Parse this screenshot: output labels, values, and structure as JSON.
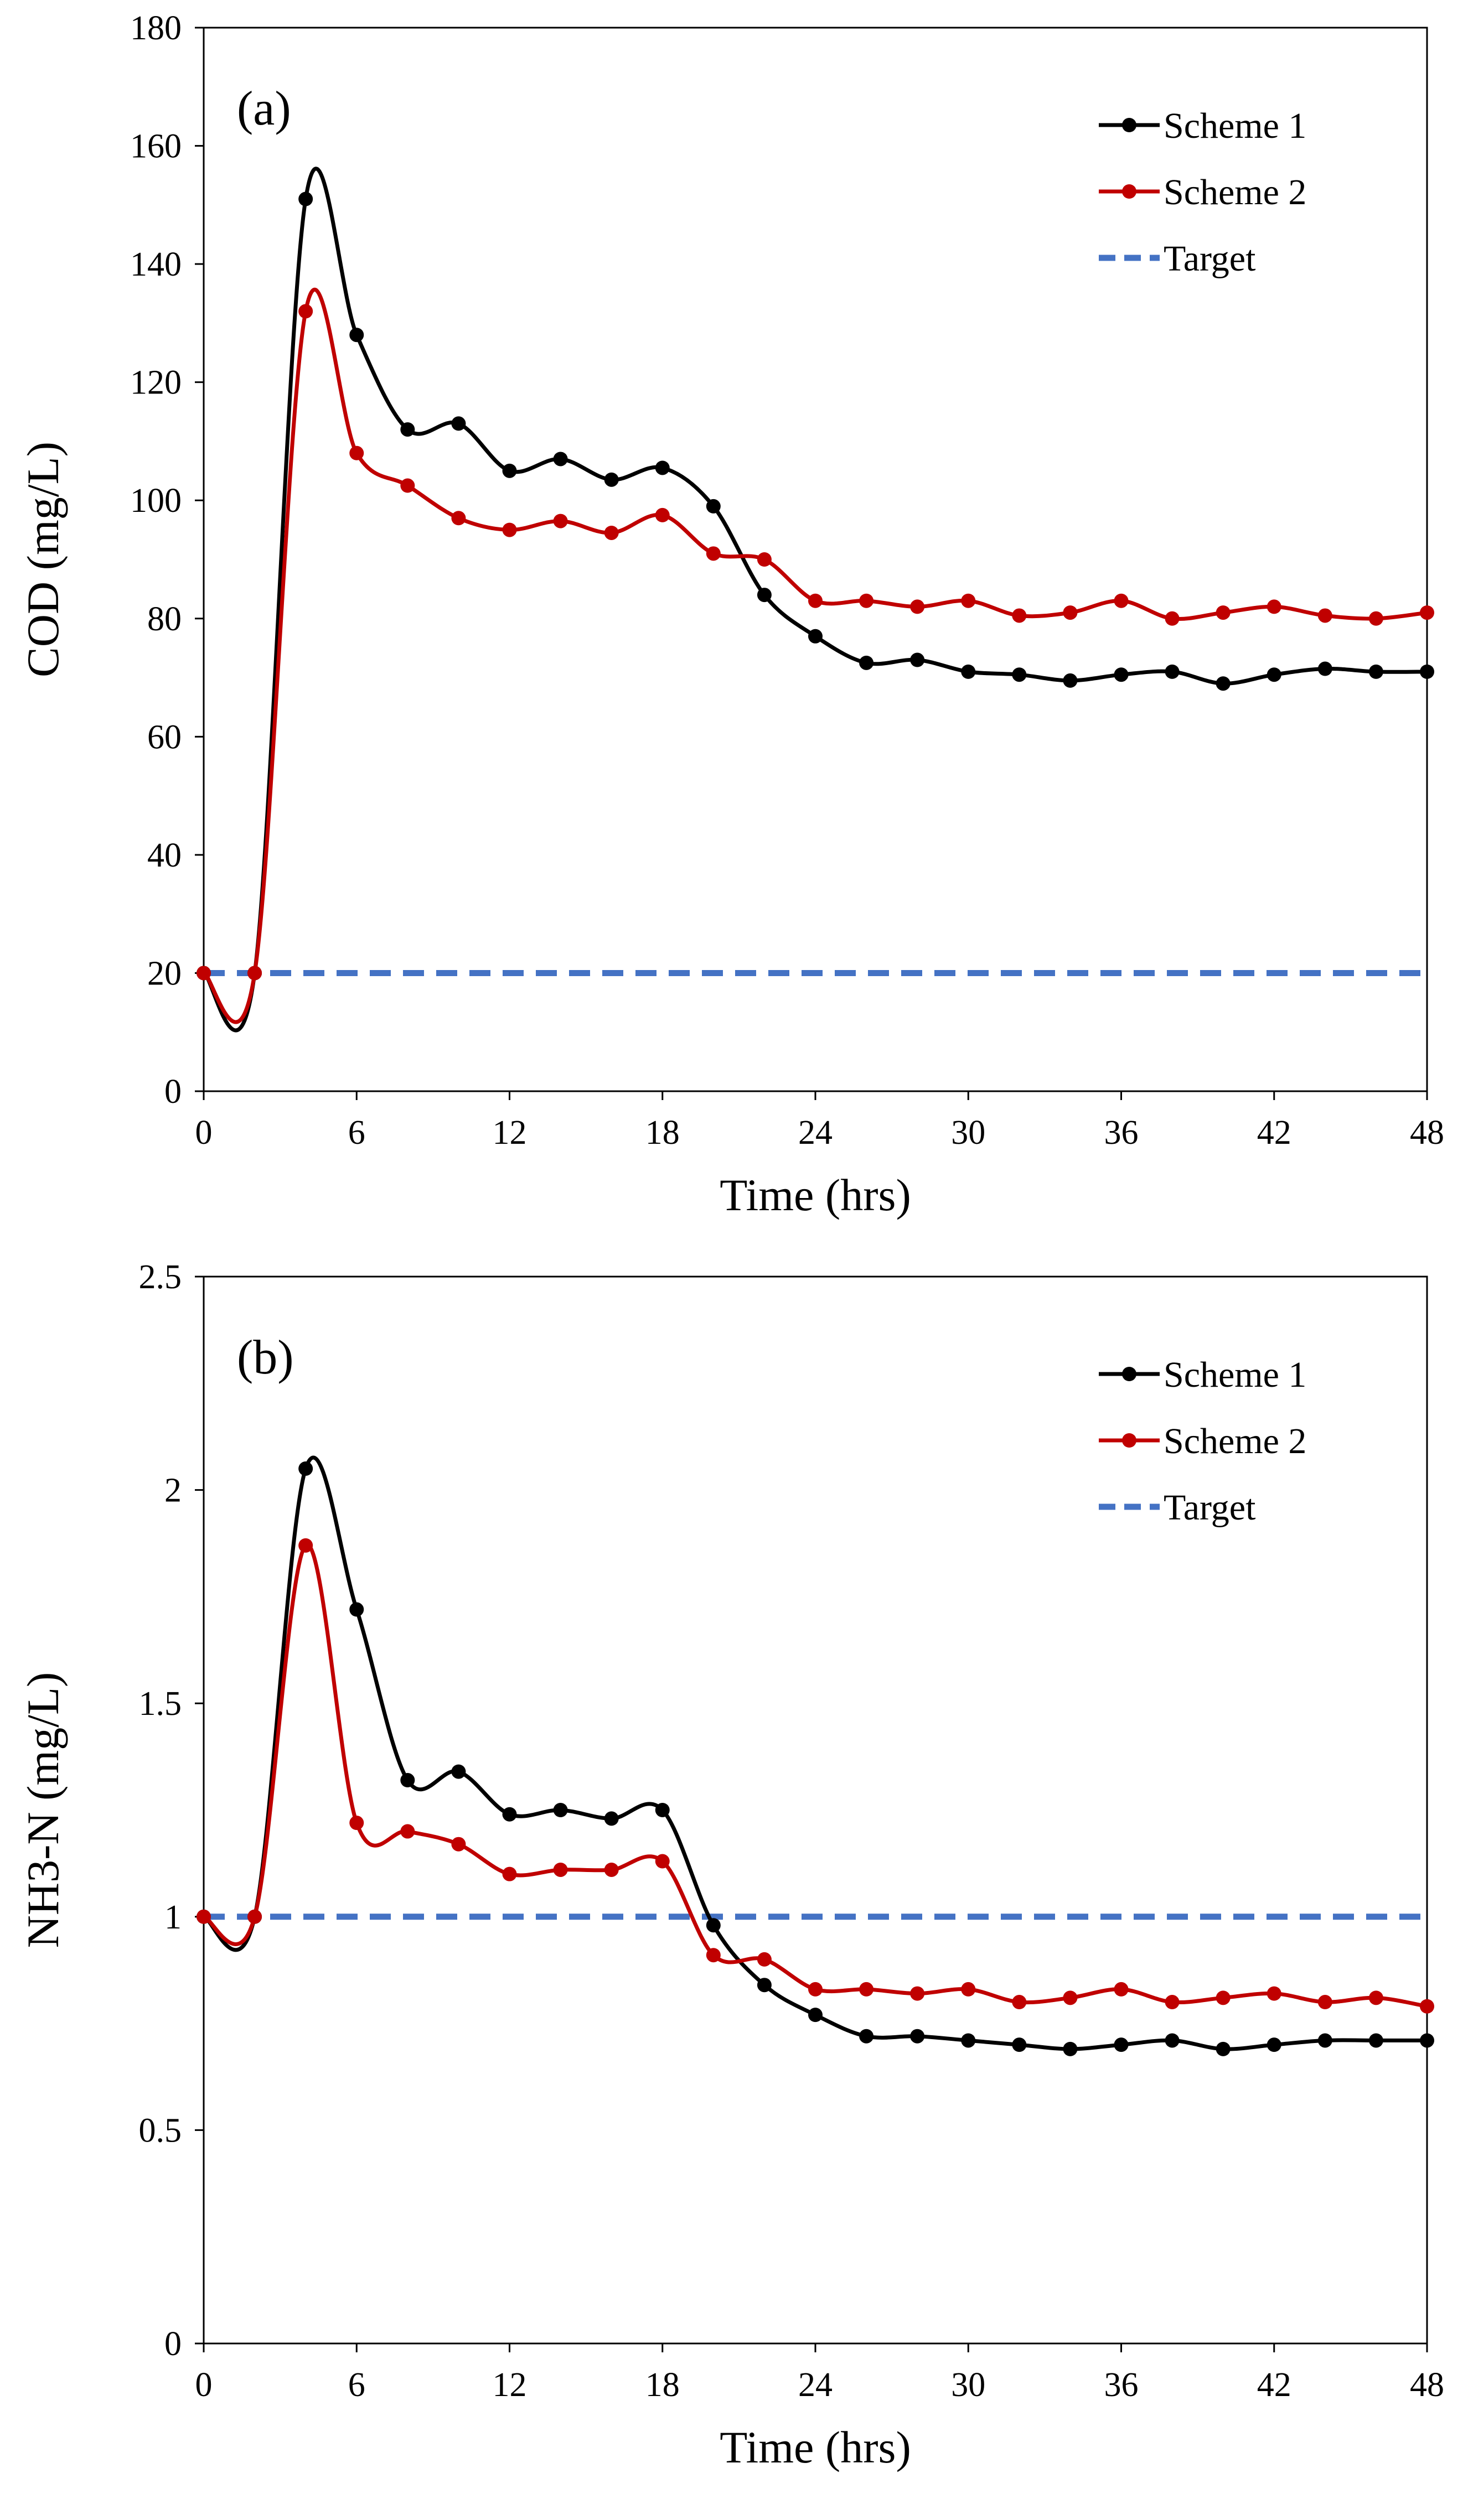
{
  "colors": {
    "scheme1": "#000000",
    "scheme2": "#c00000",
    "target": "#4472c4",
    "frame": "#000000",
    "background": "#ffffff"
  },
  "chart_data": [
    {
      "type": "line",
      "panel_label": "(a)",
      "xlabel": "Time (hrs)",
      "ylabel": "COD (mg/L)",
      "xlim": [
        0,
        48
      ],
      "ylim": [
        0,
        180
      ],
      "xticks": [
        0,
        6,
        12,
        18,
        24,
        30,
        36,
        42,
        48
      ],
      "yticks": [
        0,
        20,
        40,
        60,
        80,
        100,
        120,
        140,
        160,
        180
      ],
      "grid": false,
      "legend_position": "top-right",
      "x": [
        0,
        2,
        4,
        6,
        8,
        10,
        12,
        14,
        16,
        18,
        20,
        22,
        24,
        26,
        28,
        30,
        32,
        34,
        36,
        38,
        40,
        42,
        44,
        46,
        48
      ],
      "series": [
        {
          "name": "Scheme 1",
          "style": "line-markers",
          "color": "#000000",
          "values": [
            20,
            20,
            151,
            128,
            112,
            113,
            105,
            107,
            103.5,
            105.5,
            99,
            84,
            77,
            72.5,
            73,
            71,
            70.5,
            69.5,
            70.5,
            71,
            69,
            70.5,
            71.5,
            71,
            71
          ]
        },
        {
          "name": "Scheme 2",
          "style": "line-markers",
          "color": "#c00000",
          "values": [
            20,
            20,
            132,
            108,
            102.5,
            97,
            95,
            96.5,
            94.5,
            97.5,
            91,
            90,
            83,
            83,
            82,
            83,
            80.5,
            81,
            83,
            80,
            81,
            82,
            80.5,
            80,
            81
          ]
        },
        {
          "name": "Target",
          "style": "dashed",
          "color": "#4472c4",
          "values": [
            20,
            20,
            20,
            20,
            20,
            20,
            20,
            20,
            20,
            20,
            20,
            20,
            20,
            20,
            20,
            20,
            20,
            20,
            20,
            20,
            20,
            20,
            20,
            20,
            20
          ]
        }
      ]
    },
    {
      "type": "line",
      "panel_label": "(b)",
      "xlabel": "Time (hrs)",
      "ylabel": "NH3-N (mg/L)",
      "xlim": [
        0,
        48
      ],
      "ylim": [
        0,
        2.5
      ],
      "xticks": [
        0,
        6,
        12,
        18,
        24,
        30,
        36,
        42,
        48
      ],
      "yticks": [
        0,
        0.5,
        1,
        1.5,
        2,
        2.5
      ],
      "grid": false,
      "legend_position": "top-right",
      "x": [
        0,
        2,
        4,
        6,
        8,
        10,
        12,
        14,
        16,
        18,
        20,
        22,
        24,
        26,
        28,
        30,
        32,
        34,
        36,
        38,
        40,
        42,
        44,
        46,
        48
      ],
      "series": [
        {
          "name": "Scheme 1",
          "style": "line-markers",
          "color": "#000000",
          "values": [
            1,
            1,
            2.05,
            1.72,
            1.32,
            1.34,
            1.24,
            1.25,
            1.23,
            1.25,
            0.98,
            0.84,
            0.77,
            0.72,
            0.72,
            0.71,
            0.7,
            0.69,
            0.7,
            0.71,
            0.69,
            0.7,
            0.71,
            0.71,
            0.71
          ]
        },
        {
          "name": "Scheme 2",
          "style": "line-markers",
          "color": "#c00000",
          "values": [
            1,
            1,
            1.87,
            1.22,
            1.2,
            1.17,
            1.1,
            1.11,
            1.11,
            1.13,
            0.91,
            0.9,
            0.83,
            0.83,
            0.82,
            0.83,
            0.8,
            0.81,
            0.83,
            0.8,
            0.81,
            0.82,
            0.8,
            0.81,
            0.79
          ]
        },
        {
          "name": "Target",
          "style": "dashed",
          "color": "#4472c4",
          "values": [
            1,
            1,
            1,
            1,
            1,
            1,
            1,
            1,
            1,
            1,
            1,
            1,
            1,
            1,
            1,
            1,
            1,
            1,
            1,
            1,
            1,
            1,
            1,
            1,
            1
          ]
        }
      ]
    }
  ]
}
